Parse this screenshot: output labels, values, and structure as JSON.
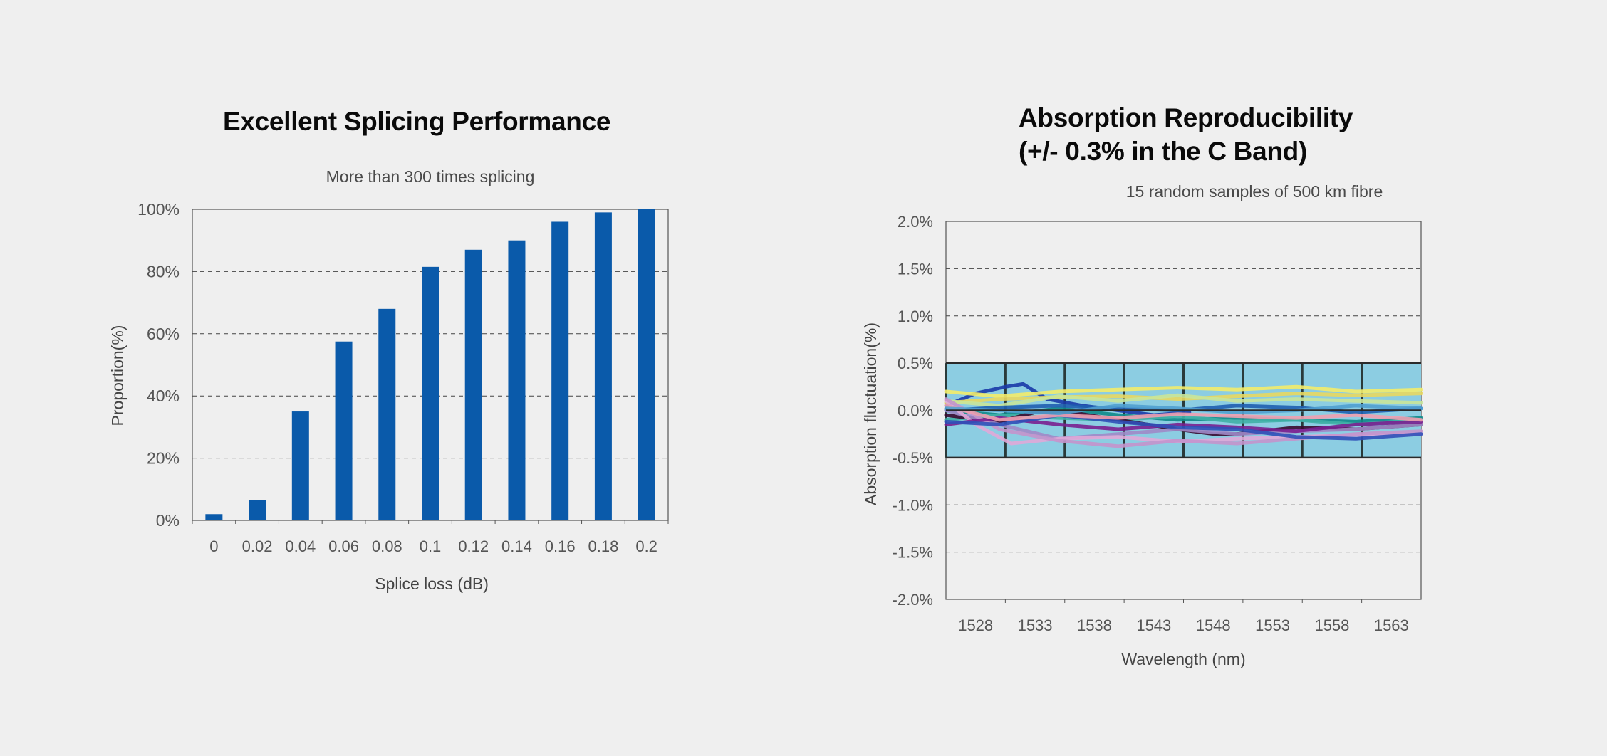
{
  "chart_data": [
    {
      "type": "bar",
      "title": "Excellent Splicing Performance",
      "subtitle": "More than 300 times splicing",
      "xlabel": "Splice loss (dB)",
      "ylabel": "Proportion(%)",
      "categories": [
        "0",
        "0.02",
        "0.04",
        "0.06",
        "0.08",
        "0.1",
        "0.12",
        "0.14",
        "0.16",
        "0.18",
        "0.2"
      ],
      "values": [
        2,
        6.5,
        35,
        57.5,
        68,
        81.5,
        87,
        90,
        96,
        99,
        100
      ],
      "ylim": [
        0,
        100
      ],
      "yticks": [
        "0%",
        "20%",
        "40%",
        "60%",
        "80%",
        "100%"
      ],
      "grid": "horizontal dashed",
      "colors": {
        "bar": "#0a5aaa"
      }
    },
    {
      "type": "line",
      "title_line1": "Absorption Reproducibility",
      "title_line2": "(+/- 0.3% in the C Band)",
      "subtitle": "15 random samples of 500 km fibre",
      "xlabel": "Wavelength (nm)",
      "ylabel": "Absorption fluctuation(%)",
      "xticks": [
        "1528",
        "1533",
        "1538",
        "1543",
        "1548",
        "1553",
        "1558",
        "1563"
      ],
      "yticks": [
        "2.0%",
        "1.5%",
        "1.0%",
        "0.5%",
        "0.0%",
        "-0.5%",
        "-1.0%",
        "-1.5%",
        "-2.0%"
      ],
      "xlim": [
        1525.5,
        1565.5
      ],
      "ylim": [
        -2.0,
        2.0
      ],
      "band": [
        -0.5,
        0.5
      ],
      "grid": "horizontal dashed",
      "colors": {
        "band": "#8ccde2",
        "band_border": "#333333"
      },
      "series": [
        {
          "color": "#1a3aa8",
          "x": [
            1525.5,
            1528,
            1530.5,
            1532,
            1534,
            1537,
            1540,
            1543,
            1546
          ],
          "y": [
            0.05,
            0.18,
            0.25,
            0.28,
            0.12,
            0.05,
            0.0,
            -0.05,
            -0.02
          ]
        },
        {
          "color": "#f3ec6a",
          "x": [
            1525.5,
            1530,
            1535,
            1540,
            1545,
            1550,
            1555,
            1560,
            1565.5
          ],
          "y": [
            0.2,
            0.15,
            0.2,
            0.22,
            0.24,
            0.22,
            0.25,
            0.2,
            0.22
          ]
        },
        {
          "color": "#e8d860",
          "x": [
            1525.5,
            1530,
            1535,
            1540,
            1545,
            1550,
            1555,
            1560,
            1565.5
          ],
          "y": [
            0.08,
            0.12,
            0.14,
            0.15,
            0.12,
            0.15,
            0.18,
            0.16,
            0.18
          ]
        },
        {
          "color": "#c9e59a",
          "x": [
            1525.5,
            1530,
            1535,
            1540,
            1545,
            1550,
            1555,
            1560,
            1565.5
          ],
          "y": [
            0.1,
            0.05,
            0.15,
            0.1,
            0.16,
            0.1,
            0.12,
            0.1,
            0.08
          ]
        },
        {
          "color": "#0f8a8a",
          "x": [
            1525.5,
            1530,
            1535,
            1540,
            1545,
            1550,
            1555,
            1560,
            1565.5
          ],
          "y": [
            0.0,
            -0.05,
            0.02,
            -0.05,
            -0.1,
            -0.08,
            -0.1,
            -0.12,
            -0.08
          ]
        },
        {
          "color": "#1f5fb0",
          "x": [
            1525.5,
            1530,
            1535,
            1540,
            1545,
            1550,
            1555,
            1560,
            1565.5
          ],
          "y": [
            0.0,
            0.03,
            0.05,
            0.02,
            0.0,
            0.05,
            0.03,
            -0.02,
            0.02
          ]
        },
        {
          "color": "#40b0a6",
          "x": [
            1525.5,
            1530,
            1535,
            1540,
            1545,
            1550,
            1555,
            1560,
            1565.5
          ],
          "y": [
            -0.1,
            -0.05,
            -0.08,
            -0.1,
            -0.06,
            -0.12,
            -0.1,
            -0.15,
            -0.1
          ]
        },
        {
          "color": "#3a0a30",
          "x": [
            1525.5,
            1530,
            1533,
            1536,
            1540,
            1545,
            1548,
            1550,
            1555,
            1560,
            1565.5
          ],
          "y": [
            -0.05,
            -0.12,
            -0.02,
            -0.02,
            -0.1,
            -0.2,
            -0.25,
            -0.25,
            -0.18,
            -0.2,
            -0.15
          ]
        },
        {
          "color": "#a08ac8",
          "x": [
            1525.5,
            1530,
            1535,
            1540,
            1545,
            1550,
            1555,
            1560,
            1565.5
          ],
          "y": [
            0.0,
            -0.15,
            -0.3,
            -0.25,
            -0.2,
            -0.25,
            -0.22,
            -0.2,
            -0.15
          ]
        },
        {
          "color": "#e0a8d8",
          "x": [
            1525.5,
            1528,
            1531,
            1535,
            1540,
            1545,
            1550,
            1555,
            1560,
            1565.5
          ],
          "y": [
            0.1,
            -0.15,
            -0.35,
            -0.3,
            -0.28,
            -0.33,
            -0.3,
            -0.28,
            -0.26,
            -0.25
          ]
        },
        {
          "color": "#c494cc",
          "x": [
            1525.5,
            1530,
            1535,
            1540,
            1545,
            1550,
            1555,
            1560,
            1565.5
          ],
          "y": [
            0.12,
            -0.2,
            -0.32,
            -0.38,
            -0.32,
            -0.35,
            -0.3,
            -0.25,
            -0.22
          ]
        },
        {
          "color": "#7a2090",
          "x": [
            1525.5,
            1530,
            1535,
            1540,
            1545,
            1550,
            1555,
            1560,
            1565.5
          ],
          "y": [
            -0.15,
            -0.08,
            -0.15,
            -0.2,
            -0.15,
            -0.18,
            -0.22,
            -0.15,
            -0.12
          ]
        },
        {
          "color": "#3050b8",
          "x": [
            1525.5,
            1530,
            1535,
            1540,
            1545,
            1550,
            1555,
            1560,
            1565.5
          ],
          "y": [
            -0.12,
            -0.15,
            -0.05,
            -0.12,
            -0.18,
            -0.2,
            -0.28,
            -0.3,
            -0.25
          ]
        },
        {
          "color": "#f0a0b0",
          "x": [
            1525.5,
            1530,
            1535,
            1540,
            1545,
            1550,
            1555,
            1560,
            1565.5
          ],
          "y": [
            0.05,
            -0.1,
            -0.05,
            -0.08,
            -0.04,
            -0.06,
            -0.08,
            -0.05,
            -0.1
          ]
        },
        {
          "color": "#50a0d0",
          "x": [
            1525.5,
            1530,
            1535,
            1540,
            1545,
            1550,
            1555,
            1560,
            1565.5
          ],
          "y": [
            0.02,
            0.0,
            -0.03,
            0.05,
            0.02,
            -0.02,
            0.0,
            0.05,
            0.02
          ]
        }
      ]
    }
  ]
}
